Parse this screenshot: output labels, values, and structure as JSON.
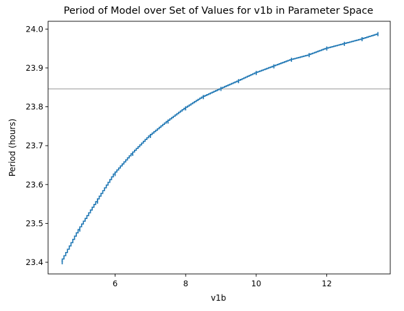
{
  "chart_data": {
    "type": "line",
    "title": "Period of Model over Set of Values for v1b in Parameter Space",
    "xlabel": "v1b",
    "ylabel": "Period (hours)",
    "xlim": [
      4.1,
      13.8
    ],
    "ylim": [
      23.37,
      24.02
    ],
    "x_ticks": [
      6,
      8,
      10,
      12
    ],
    "y_ticks": [
      23.4,
      23.5,
      23.6,
      23.7,
      23.8,
      23.9,
      24.0
    ],
    "x_tick_labels": [
      "6",
      "8",
      "10",
      "12"
    ],
    "y_tick_labels": [
      "23.4",
      "23.5",
      "23.6",
      "23.7",
      "23.8",
      "23.9",
      "24.0"
    ],
    "grid": false,
    "reference_line": {
      "y": 23.846,
      "color": "#aaaaaa"
    },
    "series": [
      {
        "color": "#1f77b4",
        "style": "step",
        "x": [
          4.5,
          5.0,
          5.5,
          6.0,
          6.5,
          7.0,
          7.5,
          8.0,
          8.5,
          9.0,
          9.5,
          10.0,
          10.5,
          11.0,
          11.5,
          12.0,
          12.5,
          13.0,
          13.45
        ],
        "y": [
          23.4,
          23.484,
          23.556,
          23.627,
          23.679,
          23.725,
          23.762,
          23.796,
          23.825,
          23.846,
          23.866,
          23.887,
          23.904,
          23.921,
          23.933,
          23.95,
          23.962,
          23.974,
          23.987
        ]
      }
    ]
  }
}
